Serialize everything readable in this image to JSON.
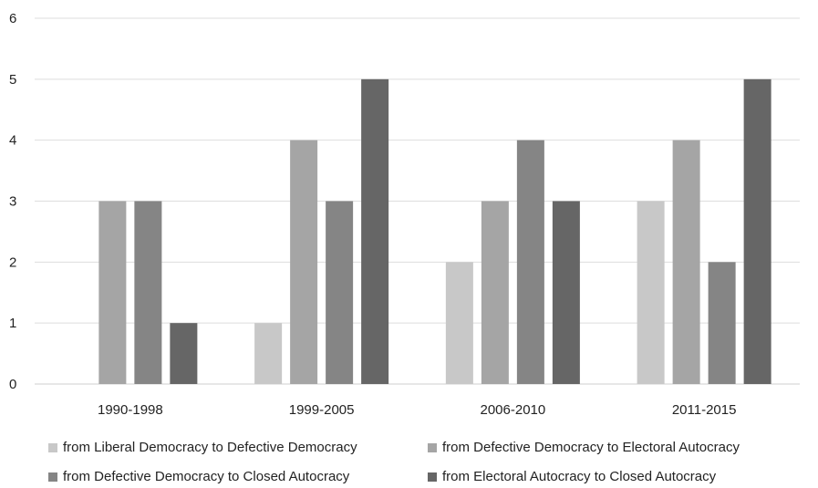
{
  "chart_data": {
    "type": "bar",
    "title": "",
    "xlabel": "",
    "ylabel": "",
    "ylim": [
      0,
      6
    ],
    "yticks": [
      0,
      1,
      2,
      3,
      4,
      5,
      6
    ],
    "grid": true,
    "legend_position": "bottom",
    "categories": [
      "1990-1998",
      "1999-2005",
      "2006-2010",
      "2011-2015"
    ],
    "series": [
      {
        "name": "from Liberal Democracy to Defective Democracy",
        "color": "#c8c8c8",
        "values": [
          0,
          1,
          2,
          3
        ]
      },
      {
        "name": "from Defective Democracy to Electoral Autocracy",
        "color": "#a5a5a5",
        "values": [
          3,
          4,
          3,
          4
        ]
      },
      {
        "name": "from Defective Democracy to Closed Autocracy",
        "color": "#858585",
        "values": [
          3,
          3,
          4,
          2
        ]
      },
      {
        "name": "from Electoral Autocracy to Closed Autocracy",
        "color": "#666666",
        "values": [
          1,
          5,
          3,
          5
        ]
      }
    ]
  }
}
